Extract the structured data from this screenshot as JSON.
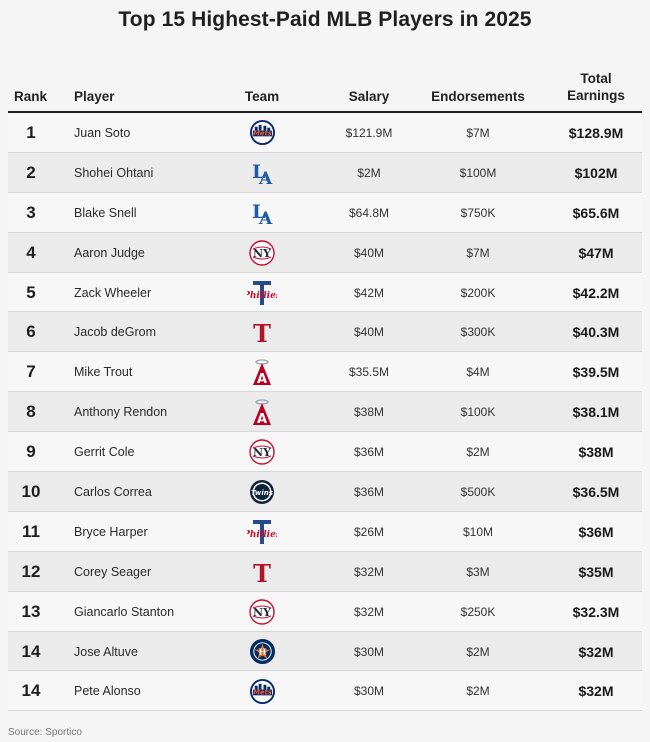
{
  "title": "Top 15 Highest-Paid MLB Players in 2025",
  "headers": {
    "rank": "Rank",
    "player": "Player",
    "team": "Team",
    "salary": "Salary",
    "endorsements": "Endorsements",
    "total_line1": "Total",
    "total_line2": "Earnings"
  },
  "rows": [
    {
      "rank": "1",
      "player": "Juan Soto",
      "team_icon": "mets-logo",
      "salary": "$121.9M",
      "endorsements": "$7M",
      "total": "$128.9M"
    },
    {
      "rank": "2",
      "player": "Shohei Ohtani",
      "team_icon": "dodgers-logo",
      "salary": "$2M",
      "endorsements": "$100M",
      "total": "$102M"
    },
    {
      "rank": "3",
      "player": "Blake Snell",
      "team_icon": "dodgers-logo",
      "salary": "$64.8M",
      "endorsements": "$750K",
      "total": "$65.6M"
    },
    {
      "rank": "4",
      "player": "Aaron Judge",
      "team_icon": "yankees-logo",
      "salary": "$40M",
      "endorsements": "$7M",
      "total": "$47M"
    },
    {
      "rank": "5",
      "player": "Zack Wheeler",
      "team_icon": "phillies-logo",
      "salary": "$42M",
      "endorsements": "$200K",
      "total": "$42.2M"
    },
    {
      "rank": "6",
      "player": "Jacob deGrom",
      "team_icon": "rangers-logo",
      "salary": "$40M",
      "endorsements": "$300K",
      "total": "$40.3M"
    },
    {
      "rank": "7",
      "player": "Mike Trout",
      "team_icon": "angels-logo",
      "salary": "$35.5M",
      "endorsements": "$4M",
      "total": "$39.5M"
    },
    {
      "rank": "8",
      "player": "Anthony Rendon",
      "team_icon": "angels-logo",
      "salary": "$38M",
      "endorsements": "$100K",
      "total": "$38.1M"
    },
    {
      "rank": "9",
      "player": "Gerrit Cole",
      "team_icon": "yankees-logo",
      "salary": "$36M",
      "endorsements": "$2M",
      "total": "$38M"
    },
    {
      "rank": "10",
      "player": "Carlos Correa",
      "team_icon": "twins-logo",
      "salary": "$36M",
      "endorsements": "$500K",
      "total": "$36.5M"
    },
    {
      "rank": "11",
      "player": "Bryce Harper",
      "team_icon": "phillies-logo",
      "salary": "$26M",
      "endorsements": "$10M",
      "total": "$36M"
    },
    {
      "rank": "12",
      "player": "Corey Seager",
      "team_icon": "rangers-logo",
      "salary": "$32M",
      "endorsements": "$3M",
      "total": "$35M"
    },
    {
      "rank": "13",
      "player": "Giancarlo Stanton",
      "team_icon": "yankees-logo",
      "salary": "$32M",
      "endorsements": "$250K",
      "total": "$32.3M"
    },
    {
      "rank": "14",
      "player": "Jose Altuve",
      "team_icon": "astros-logo",
      "salary": "$30M",
      "endorsements": "$2M",
      "total": "$32M"
    },
    {
      "rank": "14",
      "player": "Pete Alonso",
      "team_icon": "mets-logo",
      "salary": "$30M",
      "endorsements": "$2M",
      "total": "$32M"
    }
  ],
  "source": "Source: Sportico",
  "colors": {
    "mets_blue": "#0a2b6b",
    "mets_orange": "#f05a22",
    "dodgers_blue": "#1e5aa8",
    "yankees_navy": "#1c2841",
    "phillies_red": "#c8102e",
    "rangers_red": "#b0152c",
    "angels_red": "#ba0021",
    "twins_navy": "#0c2340",
    "astros_navy": "#002d62",
    "astros_orange": "#eb6e1f"
  }
}
